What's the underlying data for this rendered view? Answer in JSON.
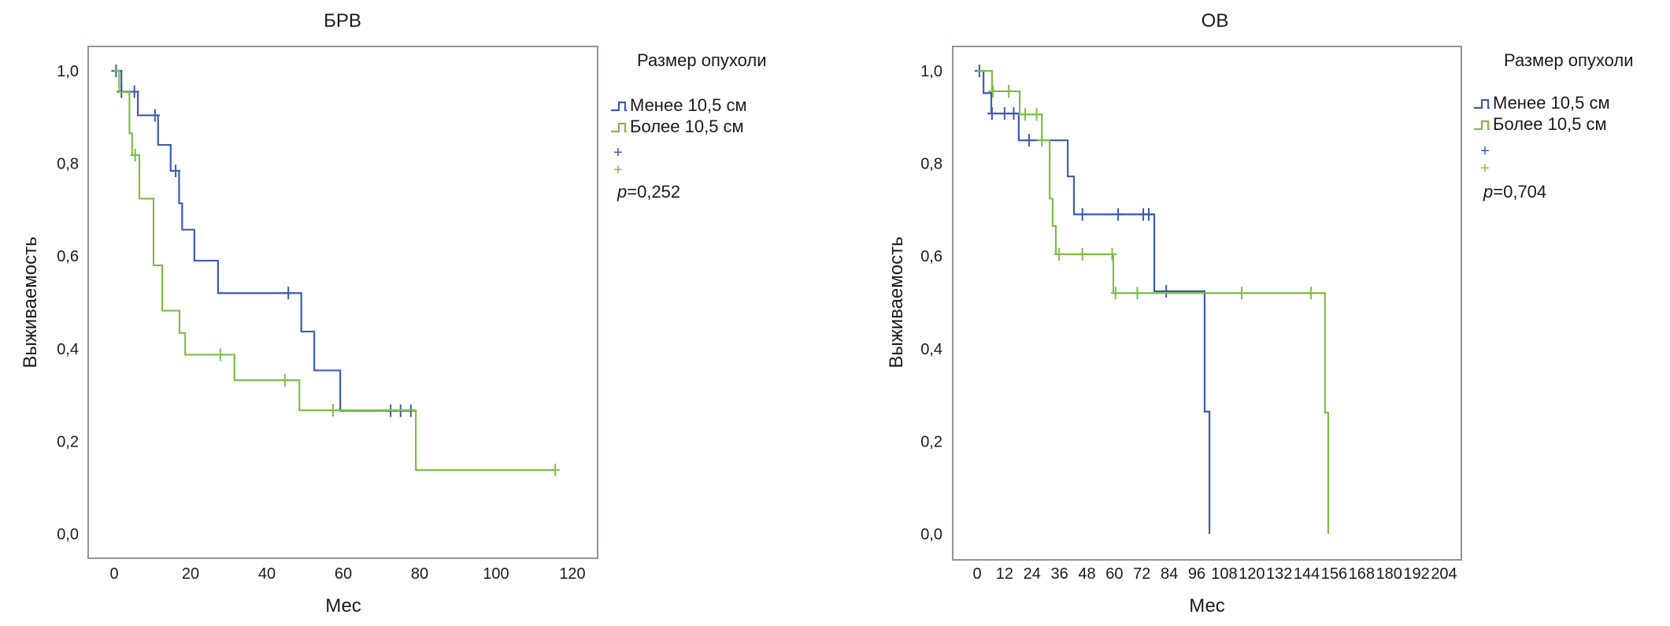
{
  "chart_data": [
    {
      "type": "line",
      "subtype": "kaplan-meier step",
      "title": "БРВ",
      "xlabel": "Мес",
      "ylabel": "Выживаемость",
      "xlim": [
        0,
        120
      ],
      "ylim": [
        0,
        1
      ],
      "x_ticks": [
        "0",
        "20",
        "40",
        "60",
        "80",
        "100",
        "120"
      ],
      "x_tick_values": [
        0,
        20,
        40,
        60,
        80,
        100,
        120
      ],
      "y_ticks": [
        "0,0",
        "0,2",
        "0,4",
        "0,6",
        "0,8",
        "1,0"
      ],
      "y_tick_values": [
        0,
        0.2,
        0.4,
        0.6,
        0.8,
        1.0
      ],
      "grid": false,
      "legend": {
        "title": "Размер опухоли",
        "placement": "right",
        "entries": [
          "Менее 10,5 см",
          "Более 10,5 см"
        ],
        "censor_markers": [
          "+",
          "+"
        ],
        "p_label": "p",
        "p_value": "=0,252"
      },
      "series": [
        {
          "name": "Менее 10,5 см",
          "color": "#3b5bb6",
          "steps": [
            [
              0,
              1.0
            ],
            [
              1.9,
              0.955
            ],
            [
              6.2,
              0.904
            ],
            [
              11.5,
              0.84
            ],
            [
              14.8,
              0.784
            ],
            [
              17.0,
              0.714
            ],
            [
              17.8,
              0.657
            ],
            [
              21.0,
              0.59
            ],
            [
              27.2,
              0.52
            ],
            [
              49.0,
              0.437
            ],
            [
              52.4,
              0.353
            ],
            [
              59.2,
              0.266
            ]
          ],
          "end": 78.5,
          "censored": [
            [
              0.5,
              1.0
            ],
            [
              1.9,
              0.955
            ],
            [
              5.3,
              0.955
            ],
            [
              10.7,
              0.904
            ],
            [
              16.1,
              0.784
            ],
            [
              45.6,
              0.52
            ],
            [
              72.4,
              0.266
            ],
            [
              75.0,
              0.266
            ],
            [
              77.7,
              0.266
            ]
          ]
        },
        {
          "name": "Более 10,5 см",
          "color": "#7cbf44",
          "steps": [
            [
              0,
              1.0
            ],
            [
              1.3,
              0.954
            ],
            [
              4.0,
              0.865
            ],
            [
              4.7,
              0.818
            ],
            [
              6.6,
              0.724
            ],
            [
              10.3,
              0.58
            ],
            [
              12.6,
              0.482
            ],
            [
              17.1,
              0.434
            ],
            [
              18.6,
              0.387
            ],
            [
              31.5,
              0.332
            ],
            [
              48.5,
              0.267
            ],
            [
              79.0,
              0.138
            ]
          ],
          "end": 115.5,
          "censored": [
            [
              5.5,
              0.818
            ],
            [
              27.8,
              0.387
            ],
            [
              44.7,
              0.332
            ],
            [
              57.3,
              0.267
            ],
            [
              115.5,
              0.138
            ]
          ]
        }
      ]
    },
    {
      "type": "line",
      "subtype": "kaplan-meier step",
      "title": "ОВ",
      "xlabel": "Мес",
      "ylabel": "Выживаемость",
      "xlim": [
        0,
        204
      ],
      "ylim": [
        0,
        1
      ],
      "x_ticks": [
        "0",
        "12",
        "24",
        "36",
        "48",
        "60",
        "72",
        "84",
        "96",
        "108",
        "120",
        "132",
        "144",
        "156",
        "168",
        "180",
        "192",
        "204"
      ],
      "x_tick_values": [
        0,
        12,
        24,
        36,
        48,
        60,
        72,
        84,
        96,
        108,
        120,
        132,
        144,
        156,
        168,
        180,
        192,
        204
      ],
      "y_ticks": [
        "0,0",
        "0,2",
        "0,4",
        "0,6",
        "0,8",
        "1,0"
      ],
      "y_tick_values": [
        0,
        0.2,
        0.4,
        0.6,
        0.8,
        1.0
      ],
      "grid": false,
      "legend": {
        "title": "Размер опухоли",
        "placement": "right",
        "entries": [
          "Менее 10,5 см",
          "Более 10,5 см"
        ],
        "censor_markers": [
          "+",
          "+"
        ],
        "p_label": "p",
        "p_value": "=0,704"
      },
      "series": [
        {
          "name": "Менее 10,5 см",
          "color": "#3b5bb6",
          "steps": [
            [
              0,
              1.0
            ],
            [
              2.8,
              0.952
            ],
            [
              6.2,
              0.908
            ],
            [
              18.2,
              0.85
            ],
            [
              39.6,
              0.772
            ],
            [
              42.3,
              0.69
            ],
            [
              77.4,
              0.524
            ],
            [
              99.4,
              0.264
            ],
            [
              101.5,
              0.0
            ]
          ],
          "end": 101.5,
          "censored": [
            [
              1.0,
              1.0
            ],
            [
              6.5,
              0.908
            ],
            [
              12.0,
              0.908
            ],
            [
              16.0,
              0.908
            ],
            [
              22.7,
              0.85
            ],
            [
              46.0,
              0.69
            ],
            [
              61.6,
              0.69
            ],
            [
              72.6,
              0.69
            ],
            [
              75.0,
              0.69
            ],
            [
              82.6,
              0.524
            ]
          ]
        },
        {
          "name": "Более 10,5 см",
          "color": "#7cbf44",
          "steps": [
            [
              0,
              1.0
            ],
            [
              6.5,
              0.956
            ],
            [
              18.6,
              0.906
            ],
            [
              28.3,
              0.85
            ],
            [
              31.7,
              0.724
            ],
            [
              33.0,
              0.665
            ],
            [
              34.4,
              0.604
            ],
            [
              59.5,
              0.52
            ],
            [
              152.0,
              0.262
            ],
            [
              153.4,
              0.0
            ]
          ],
          "end": 153.4,
          "censored": [
            [
              6.9,
              0.956
            ],
            [
              13.8,
              0.956
            ],
            [
              21.0,
              0.906
            ],
            [
              26.0,
              0.906
            ],
            [
              28.3,
              0.85
            ],
            [
              35.8,
              0.604
            ],
            [
              46.0,
              0.604
            ],
            [
              59.0,
              0.604
            ],
            [
              60.5,
              0.52
            ],
            [
              70.0,
              0.52
            ],
            [
              115.6,
              0.52
            ],
            [
              145.9,
              0.52
            ]
          ]
        }
      ]
    }
  ]
}
